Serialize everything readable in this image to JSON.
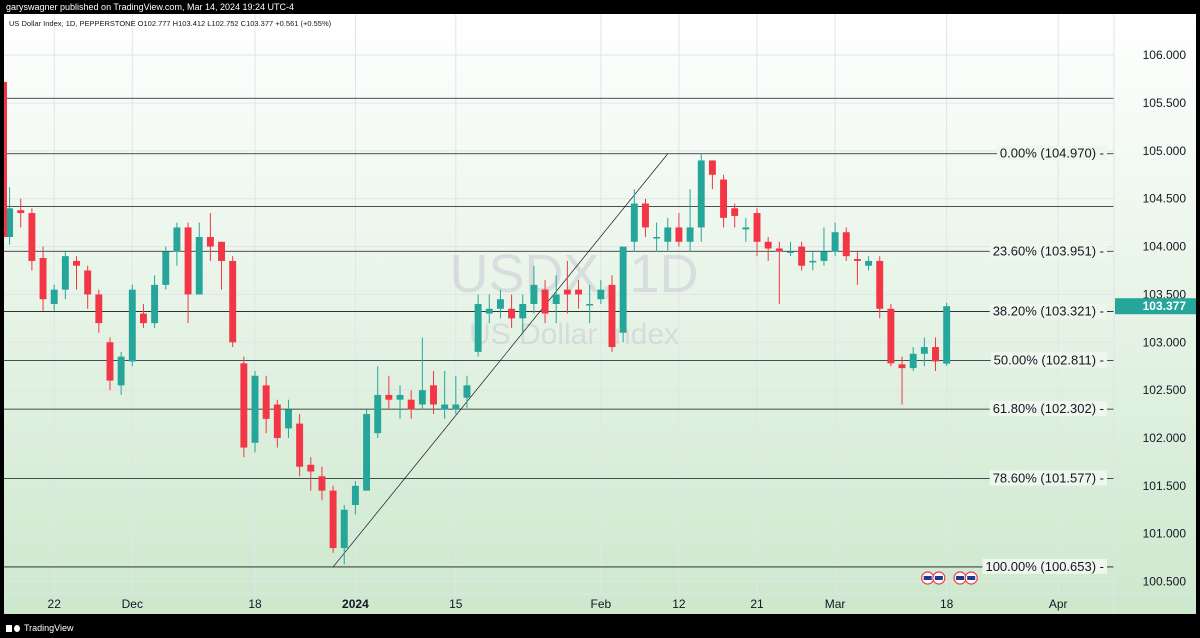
{
  "header": {
    "publisher": "garyswagner published on TradingView.com, Mar 14, 2024 19:24 UTC-4"
  },
  "footer": {
    "brand": "TradingView"
  },
  "chart_data": {
    "type": "candlestick",
    "legend": "US Dollar Index, 1D, PEPPERSTONE  O102.777  H103.412  L102.752  C103.377  +0.561 (+0.55%)",
    "watermark_symbol": "USDX, 1D",
    "watermark_name": "US Dollar Index",
    "ylim": [
      100.37,
      106.43
    ],
    "y_ticks": [
      "106.000",
      "105.500",
      "105.000",
      "104.500",
      "104.000",
      "103.500",
      "103.000",
      "102.500",
      "102.000",
      "101.500",
      "101.000",
      "100.500"
    ],
    "x_ticks": [
      {
        "label": "22",
        "i": 4
      },
      {
        "label": "Dec",
        "i": 11
      },
      {
        "label": "18",
        "i": 22
      },
      {
        "label": "2024",
        "i": 31,
        "bold": true
      },
      {
        "label": "15",
        "i": 40
      },
      {
        "label": "Feb",
        "i": 53
      },
      {
        "label": "12",
        "i": 60
      },
      {
        "label": "21",
        "i": 67
      },
      {
        "label": "Mar",
        "i": 74
      },
      {
        "label": "18",
        "i": 84
      },
      {
        "label": "Apr",
        "i": 94
      }
    ],
    "x_index_range": [
      -0.5,
      99.0
    ],
    "current_price": "103.377",
    "colors": {
      "up": "#26a69a",
      "down": "#f23645",
      "grid": "#e1e4ea",
      "line": "#131722",
      "price_tag": "#26a69a"
    },
    "horizontal_lines": [
      105.55,
      104.42
    ],
    "fib_levels": [
      {
        "label": "0.00% (104.970)",
        "price": 104.97
      },
      {
        "label": "23.60% (103.951)",
        "price": 103.951
      },
      {
        "label": "38.20% (103.321)",
        "price": 103.321
      },
      {
        "label": "50.00% (102.811)",
        "price": 102.811
      },
      {
        "label": "61.80% (102.302)",
        "price": 102.302
      },
      {
        "label": "78.60% (101.577)",
        "price": 101.577
      },
      {
        "label": "100.00% (100.653)",
        "price": 100.653
      }
    ],
    "trendline": {
      "from": [
        29.0,
        100.653
      ],
      "to": [
        59.0,
        104.97
      ]
    },
    "event_icons": [
      "us-flag",
      "us-flag",
      "us-flag",
      "us-flag"
    ],
    "event_index": [
      82.3,
      83.3,
      85.2,
      86.2
    ],
    "candles": [
      [
        0,
        104.1,
        104.4,
        104.62,
        104.02
      ],
      [
        1,
        104.38,
        104.35,
        104.5,
        104.2
      ],
      [
        2,
        104.35,
        103.85,
        104.4,
        103.75
      ],
      [
        3,
        103.88,
        103.45,
        104.0,
        103.33
      ],
      [
        4,
        103.4,
        103.55,
        103.6,
        103.33
      ],
      [
        5,
        103.55,
        103.9,
        103.95,
        103.45
      ],
      [
        6,
        103.85,
        103.8,
        103.9,
        103.55
      ],
      [
        7,
        103.75,
        103.5,
        103.8,
        103.35
      ],
      [
        8,
        103.5,
        103.2,
        103.55,
        103.1
      ],
      [
        9,
        103.0,
        102.6,
        103.05,
        102.5
      ],
      [
        10,
        102.55,
        102.85,
        102.9,
        102.45
      ],
      [
        11,
        102.8,
        103.55,
        103.6,
        102.75
      ],
      [
        12,
        103.3,
        103.2,
        103.4,
        103.15
      ],
      [
        13,
        103.2,
        103.6,
        103.7,
        103.15
      ],
      [
        14,
        103.6,
        103.95,
        104.0,
        103.55
      ],
      [
        15,
        103.95,
        104.2,
        104.25,
        103.8
      ],
      [
        16,
        104.2,
        103.5,
        104.25,
        103.2
      ],
      [
        17,
        103.5,
        104.1,
        104.25,
        103.5
      ],
      [
        18,
        104.1,
        104.0,
        104.35,
        103.85
      ],
      [
        19,
        104.05,
        103.85,
        104.05,
        103.55
      ],
      [
        20,
        103.85,
        103.0,
        103.9,
        102.95
      ],
      [
        21,
        102.78,
        101.9,
        102.85,
        101.8
      ],
      [
        22,
        101.95,
        102.65,
        102.7,
        101.85
      ],
      [
        23,
        102.55,
        102.2,
        102.65,
        102.05
      ],
      [
        24,
        102.35,
        102.0,
        102.4,
        101.9
      ],
      [
        25,
        102.1,
        102.3,
        102.4,
        102.0
      ],
      [
        26,
        102.15,
        101.7,
        102.25,
        101.6
      ],
      [
        27,
        101.72,
        101.65,
        101.8,
        101.45
      ],
      [
        28,
        101.6,
        101.45,
        101.7,
        101.35
      ],
      [
        29,
        101.45,
        100.85,
        101.5,
        100.8
      ],
      [
        30,
        100.85,
        101.25,
        101.3,
        100.68
      ],
      [
        31,
        101.3,
        101.5,
        101.55,
        101.2
      ],
      [
        32,
        101.45,
        102.25,
        102.3,
        101.45
      ],
      [
        33,
        102.05,
        102.45,
        102.75,
        102.0
      ],
      [
        34,
        102.45,
        102.4,
        102.65,
        102.3
      ],
      [
        35,
        102.4,
        102.45,
        102.55,
        102.2
      ],
      [
        36,
        102.4,
        102.3,
        102.5,
        102.2
      ],
      [
        37,
        102.35,
        102.5,
        103.05,
        102.3
      ],
      [
        38,
        102.55,
        102.35,
        102.7,
        102.25
      ],
      [
        39,
        102.3,
        102.35,
        102.7,
        102.2
      ],
      [
        40,
        102.3,
        102.35,
        102.65,
        102.25
      ],
      [
        41,
        102.42,
        102.55,
        102.65,
        102.3
      ],
      [
        42,
        102.9,
        103.4,
        103.5,
        102.85
      ],
      [
        43,
        103.3,
        103.35,
        103.5,
        103.2
      ],
      [
        44,
        103.35,
        103.45,
        103.55,
        103.25
      ],
      [
        45,
        103.35,
        103.25,
        103.5,
        103.15
      ],
      [
        46,
        103.25,
        103.4,
        103.5,
        103.1
      ],
      [
        47,
        103.4,
        103.6,
        103.8,
        103.3
      ],
      [
        48,
        103.55,
        103.3,
        103.65,
        103.2
      ],
      [
        49,
        103.4,
        103.5,
        103.7,
        103.2
      ],
      [
        50,
        103.55,
        103.5,
        103.85,
        103.3
      ],
      [
        51,
        103.55,
        103.5,
        103.65,
        103.35
      ],
      [
        52,
        103.4,
        103.4,
        103.6,
        103.2
      ],
      [
        53,
        103.45,
        103.55,
        103.65,
        103.4
      ],
      [
        54,
        103.6,
        102.95,
        103.7,
        102.9
      ],
      [
        55,
        103.1,
        104.0,
        104.0,
        103.0
      ],
      [
        56,
        104.05,
        104.45,
        104.6,
        103.95
      ],
      [
        57,
        104.45,
        104.2,
        104.5,
        104.1
      ],
      [
        58,
        104.1,
        104.1,
        104.25,
        103.95
      ],
      [
        59,
        104.05,
        104.2,
        104.3,
        103.95
      ],
      [
        60,
        104.2,
        104.05,
        104.35,
        104.0
      ],
      [
        61,
        104.05,
        104.2,
        104.6,
        103.95
      ],
      [
        62,
        104.2,
        104.9,
        104.97,
        104.05
      ],
      [
        63,
        104.9,
        104.75,
        104.9,
        104.6
      ],
      [
        64,
        104.7,
        104.3,
        104.75,
        104.2
      ],
      [
        65,
        104.4,
        104.32,
        104.45,
        104.2
      ],
      [
        66,
        104.18,
        104.2,
        104.3,
        104.05
      ],
      [
        67,
        104.35,
        104.05,
        104.4,
        103.9
      ],
      [
        68,
        104.05,
        103.98,
        104.1,
        103.85
      ],
      [
        69,
        103.98,
        103.95,
        104.05,
        103.4
      ],
      [
        70,
        103.95,
        103.95,
        104.05,
        103.9
      ],
      [
        71,
        104.0,
        103.8,
        104.05,
        103.75
      ],
      [
        72,
        103.85,
        103.85,
        103.95,
        103.75
      ],
      [
        73,
        103.85,
        103.95,
        104.2,
        103.8
      ],
      [
        74,
        103.95,
        104.15,
        104.25,
        103.9
      ],
      [
        75,
        104.15,
        103.9,
        104.2,
        103.85
      ],
      [
        76,
        103.87,
        103.85,
        103.95,
        103.6
      ],
      [
        77,
        103.8,
        103.85,
        103.9,
        103.75
      ],
      [
        78,
        103.85,
        103.35,
        103.9,
        103.25
      ],
      [
        79,
        103.35,
        102.78,
        103.4,
        102.75
      ],
      [
        80,
        102.77,
        102.73,
        102.85,
        102.35
      ],
      [
        81,
        102.73,
        102.88,
        102.95,
        102.7
      ],
      [
        82,
        102.88,
        102.95,
        103.05,
        102.75
      ],
      [
        83,
        102.95,
        102.8,
        103.05,
        102.7
      ],
      [
        84,
        102.777,
        103.377,
        103.412,
        102.752
      ]
    ]
  }
}
